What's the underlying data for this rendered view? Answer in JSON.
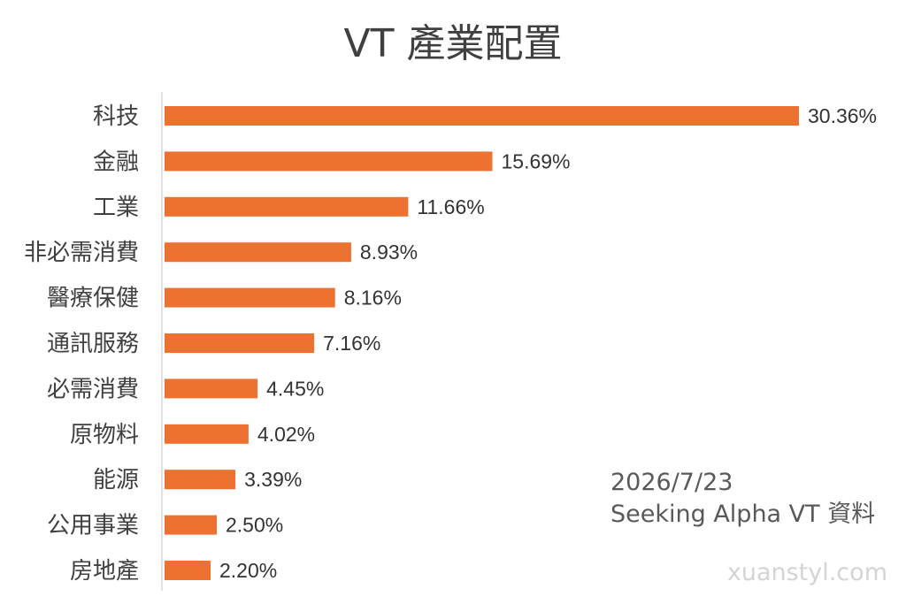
{
  "chart_data": {
    "type": "bar",
    "orientation": "horizontal",
    "title": "VT 產業配置",
    "categories": [
      "科技",
      "金融",
      "工業",
      "非必需消費",
      "醫療保健",
      "通訊服務",
      "必需消費",
      "原物料",
      "能源",
      "公用事業",
      "房地產"
    ],
    "values": [
      30.36,
      15.69,
      11.66,
      8.93,
      8.16,
      7.16,
      4.45,
      4.02,
      3.39,
      2.5,
      2.2
    ],
    "data_labels": [
      "30.36%",
      "15.69%",
      "11.66%",
      "8.93%",
      "8.16%",
      "7.16%",
      "4.45%",
      "4.02%",
      "3.39%",
      "2.50%",
      "2.20%"
    ],
    "unit": "%",
    "xlim": [
      0,
      30.36
    ],
    "grid": false,
    "legend": "none",
    "bar_color": "#ed7232",
    "annotations": [
      "2026/7/23",
      "Seeking Alpha VT 資料"
    ]
  },
  "watermark": "xuanstyl.com"
}
